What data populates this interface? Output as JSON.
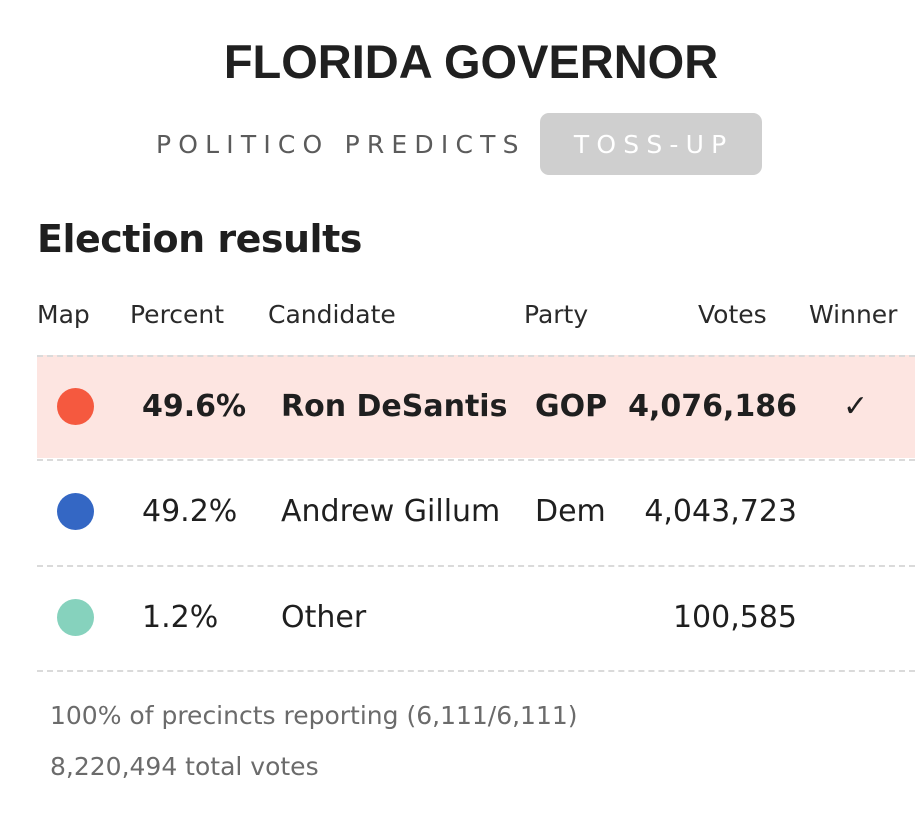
{
  "header": {
    "title": "FLORIDA GOVERNOR",
    "predicts_label": "POLITICO PREDICTS",
    "rating": "TOSS-UP"
  },
  "results": {
    "section_title": "Election results",
    "columns": {
      "map": "Map",
      "percent": "Percent",
      "candidate": "Candidate",
      "party": "Party",
      "votes": "Votes",
      "winner": "Winner"
    },
    "rows": [
      {
        "color": "#f5593f",
        "percent": "49.6%",
        "candidate": "Ron DeSantis",
        "party": "GOP",
        "votes": "4,076,186",
        "winner_mark": "✓",
        "is_winner": true
      },
      {
        "color": "#3467c4",
        "percent": "49.2%",
        "candidate": "Andrew Gillum",
        "party": "Dem",
        "votes": "4,043,723",
        "winner_mark": "",
        "is_winner": false
      },
      {
        "color": "#86d2bd",
        "percent": "1.2%",
        "candidate": "Other",
        "party": "",
        "votes": "100,585",
        "winner_mark": "",
        "is_winner": false
      }
    ]
  },
  "footer": {
    "precincts": "100% of precincts reporting (6,111/6,111)",
    "total_votes": "8,220,494 total votes"
  }
}
